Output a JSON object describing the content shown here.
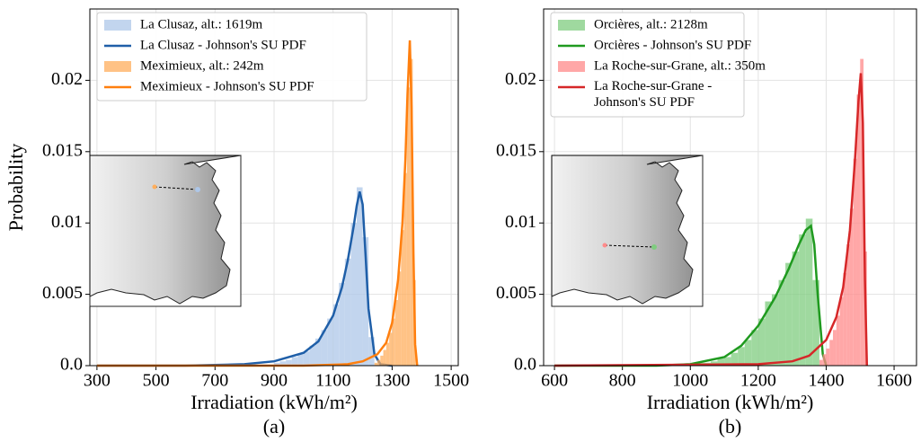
{
  "chart_data": [
    {
      "type": "histogram",
      "xlabel": "Irradiation (kWh/m²)",
      "ylabel": "Probability",
      "caption": "(a)",
      "xlim": [
        276,
        1524
      ],
      "xticks": [
        300,
        500,
        700,
        900,
        1100,
        1300,
        1500
      ],
      "ylim": [
        0,
        0.025
      ],
      "yticks": [
        {
          "value": 0,
          "label": "0.0"
        },
        0.005,
        0.01,
        0.015,
        0.02
      ],
      "grid": true,
      "legend": "upper left",
      "series": [
        {
          "name": "La Clusaz, alt.: 1619m",
          "kind": "hist",
          "color": "#aec7e8",
          "bins": [
            900,
            920,
            940,
            960,
            980,
            1000,
            1020,
            1040,
            1060,
            1080,
            1100,
            1120,
            1140,
            1160,
            1180,
            1200,
            1220,
            1240
          ],
          "values": [
            0.0002,
            0.0003,
            0.0004,
            0.0006,
            0.0008,
            0.001,
            0.0014,
            0.0019,
            0.0025,
            0.0033,
            0.0043,
            0.0058,
            0.0075,
            0.01,
            0.0125,
            0.009,
            0.002
          ]
        },
        {
          "name": "La Clusaz - Johnson's SU PDF",
          "kind": "line",
          "color": "#1f5fa8",
          "x": [
            300,
            600,
            800,
            900,
            1000,
            1050,
            1100,
            1130,
            1150,
            1170,
            1180,
            1190,
            1200,
            1210,
            1220,
            1240,
            1260,
            1300
          ],
          "values": [
            0,
            0,
            0.0001,
            0.0003,
            0.0009,
            0.0017,
            0.0035,
            0.0055,
            0.0074,
            0.0098,
            0.0112,
            0.0122,
            0.0113,
            0.0078,
            0.004,
            0.0008,
            0.0001,
            0
          ]
        },
        {
          "name": "Meximieux, alt.: 242m",
          "kind": "hist",
          "color": "#ffae5c",
          "bins": [
            1240,
            1250,
            1260,
            1270,
            1280,
            1290,
            1300,
            1310,
            1320,
            1330,
            1340,
            1350,
            1360,
            1370,
            1380
          ],
          "values": [
            0.0002,
            0.0004,
            0.0007,
            0.0011,
            0.0016,
            0.0023,
            0.0033,
            0.0046,
            0.0066,
            0.0095,
            0.0135,
            0.0195,
            0.0215,
            0.006
          ]
        },
        {
          "name": "Meximieux - Johnson's SU PDF",
          "kind": "line",
          "color": "#ff7f0e",
          "x": [
            300,
            1000,
            1150,
            1200,
            1250,
            1280,
            1300,
            1320,
            1335,
            1345,
            1352,
            1360,
            1366,
            1372,
            1378,
            1385
          ],
          "values": [
            0,
            0,
            0.0001,
            0.0003,
            0.0008,
            0.0016,
            0.003,
            0.006,
            0.01,
            0.0145,
            0.019,
            0.0228,
            0.018,
            0.008,
            0.0015,
            0
          ]
        }
      ]
    },
    {
      "type": "histogram",
      "xlabel": "Irradiation (kWh/m²)",
      "caption": "(b)",
      "xlim": [
        568,
        1666
      ],
      "xticks": [
        600,
        800,
        1000,
        1200,
        1400,
        1600
      ],
      "ylim": [
        0,
        0.025
      ],
      "yticks": [
        {
          "value": 0,
          "label": "0.0"
        },
        0.005,
        0.01,
        0.015,
        0.02
      ],
      "grid": true,
      "legend": "upper left",
      "series": [
        {
          "name": "Orcières, alt.: 2128m",
          "kind": "hist",
          "color": "#7fcc7f",
          "bins": [
            1000,
            1020,
            1040,
            1060,
            1080,
            1100,
            1120,
            1140,
            1160,
            1180,
            1200,
            1220,
            1240,
            1260,
            1280,
            1300,
            1320,
            1340,
            1360,
            1380
          ],
          "values": [
            0.0001,
            0.0002,
            0.0002,
            0.0003,
            0.0005,
            0.0006,
            0.0009,
            0.0013,
            0.0018,
            0.0025,
            0.0033,
            0.0045,
            0.005,
            0.006,
            0.0072,
            0.008,
            0.0092,
            0.0103,
            0.006
          ]
        },
        {
          "name": "Orcières - Johnson's SU PDF",
          "kind": "line",
          "color": "#1f9a1f",
          "x": [
            600,
            900,
            1000,
            1100,
            1150,
            1200,
            1250,
            1290,
            1320,
            1340,
            1355,
            1365,
            1375,
            1390,
            1400
          ],
          "values": [
            0,
            0,
            0.0001,
            0.0006,
            0.0014,
            0.0028,
            0.0048,
            0.0068,
            0.0085,
            0.0095,
            0.0098,
            0.0085,
            0.005,
            0.0008,
            0
          ]
        },
        {
          "name": "La Roche-sur-Grane, alt.: 350m",
          "kind": "hist",
          "color": "#ff8a8a",
          "bins": [
            1380,
            1390,
            1400,
            1410,
            1420,
            1430,
            1440,
            1450,
            1460,
            1470,
            1480,
            1490,
            1500,
            1510,
            1520
          ],
          "values": [
            0.0004,
            0.0008,
            0.0012,
            0.0018,
            0.0025,
            0.0035,
            0.0048,
            0.0065,
            0.0085,
            0.011,
            0.0145,
            0.019,
            0.0215,
            0.008
          ]
        },
        {
          "name": "La Roche-sur-Grane -\nJohnson's SU PDF",
          "kind": "line",
          "color": "#d62728",
          "x": [
            600,
            1200,
            1300,
            1350,
            1400,
            1430,
            1450,
            1470,
            1485,
            1495,
            1502,
            1508,
            1514,
            1520
          ],
          "values": [
            0,
            0.0001,
            0.0003,
            0.0007,
            0.0018,
            0.0034,
            0.0055,
            0.0095,
            0.0145,
            0.0185,
            0.0205,
            0.017,
            0.006,
            0
          ]
        }
      ]
    }
  ]
}
